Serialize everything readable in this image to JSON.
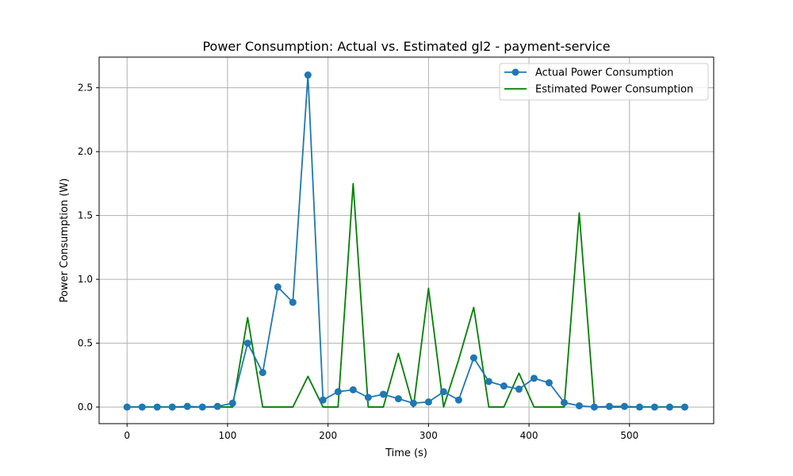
{
  "chart_data": {
    "type": "line",
    "title": "Power Consumption: Actual vs. Estimated gl2 - payment-service",
    "xlabel": "Time (s)",
    "ylabel": "Power Consumption (W)",
    "xlim": [
      -27.8,
      583.8
    ],
    "ylim": [
      -0.13,
      2.74
    ],
    "xticks": [
      0,
      100,
      200,
      300,
      400,
      500
    ],
    "yticks": [
      0.0,
      0.5,
      1.0,
      1.5,
      2.0,
      2.5
    ],
    "xtick_labels": [
      "0",
      "100",
      "200",
      "300",
      "400",
      "500"
    ],
    "ytick_labels": [
      "0.0",
      "0.5",
      "1.0",
      "1.5",
      "2.0",
      "2.5"
    ],
    "grid": true,
    "legend_position": "top-right",
    "x": [
      0,
      15,
      30,
      45,
      60,
      75,
      90,
      105,
      120,
      135,
      150,
      165,
      180,
      195,
      210,
      225,
      240,
      255,
      270,
      285,
      300,
      315,
      330,
      345,
      360,
      375,
      390,
      405,
      420,
      435,
      450,
      465,
      480,
      495,
      510,
      525,
      540,
      555
    ],
    "series": [
      {
        "name": "Actual Power Consumption",
        "color": "#1f77b4",
        "marker": "circle",
        "values": [
          0.0,
          0.0,
          0.0,
          0.0,
          0.005,
          0.0,
          0.005,
          0.03,
          0.5,
          0.27,
          0.94,
          0.82,
          2.6,
          0.055,
          0.12,
          0.135,
          0.075,
          0.1,
          0.065,
          0.03,
          0.04,
          0.12,
          0.055,
          0.385,
          0.2,
          0.165,
          0.14,
          0.225,
          0.19,
          0.035,
          0.01,
          0.0,
          0.005,
          0.005,
          0.0,
          0.0,
          0.0,
          0.0
        ]
      },
      {
        "name": "Estimated Power Consumption",
        "color": "#008000",
        "marker": "none",
        "values": [
          0.0,
          0.0,
          0.0,
          0.0,
          0.0,
          0.0,
          0.0,
          0.0,
          0.7,
          0.0,
          0.0,
          0.0,
          0.24,
          0.0,
          0.0,
          1.75,
          0.0,
          0.0,
          0.42,
          0.0,
          0.93,
          0.0,
          0.37,
          0.78,
          0.0,
          0.0,
          0.265,
          0.0,
          0.0,
          0.0,
          1.52,
          0.0,
          0.0,
          0.0,
          0.0,
          0.0,
          0.0,
          0.0
        ]
      }
    ]
  }
}
